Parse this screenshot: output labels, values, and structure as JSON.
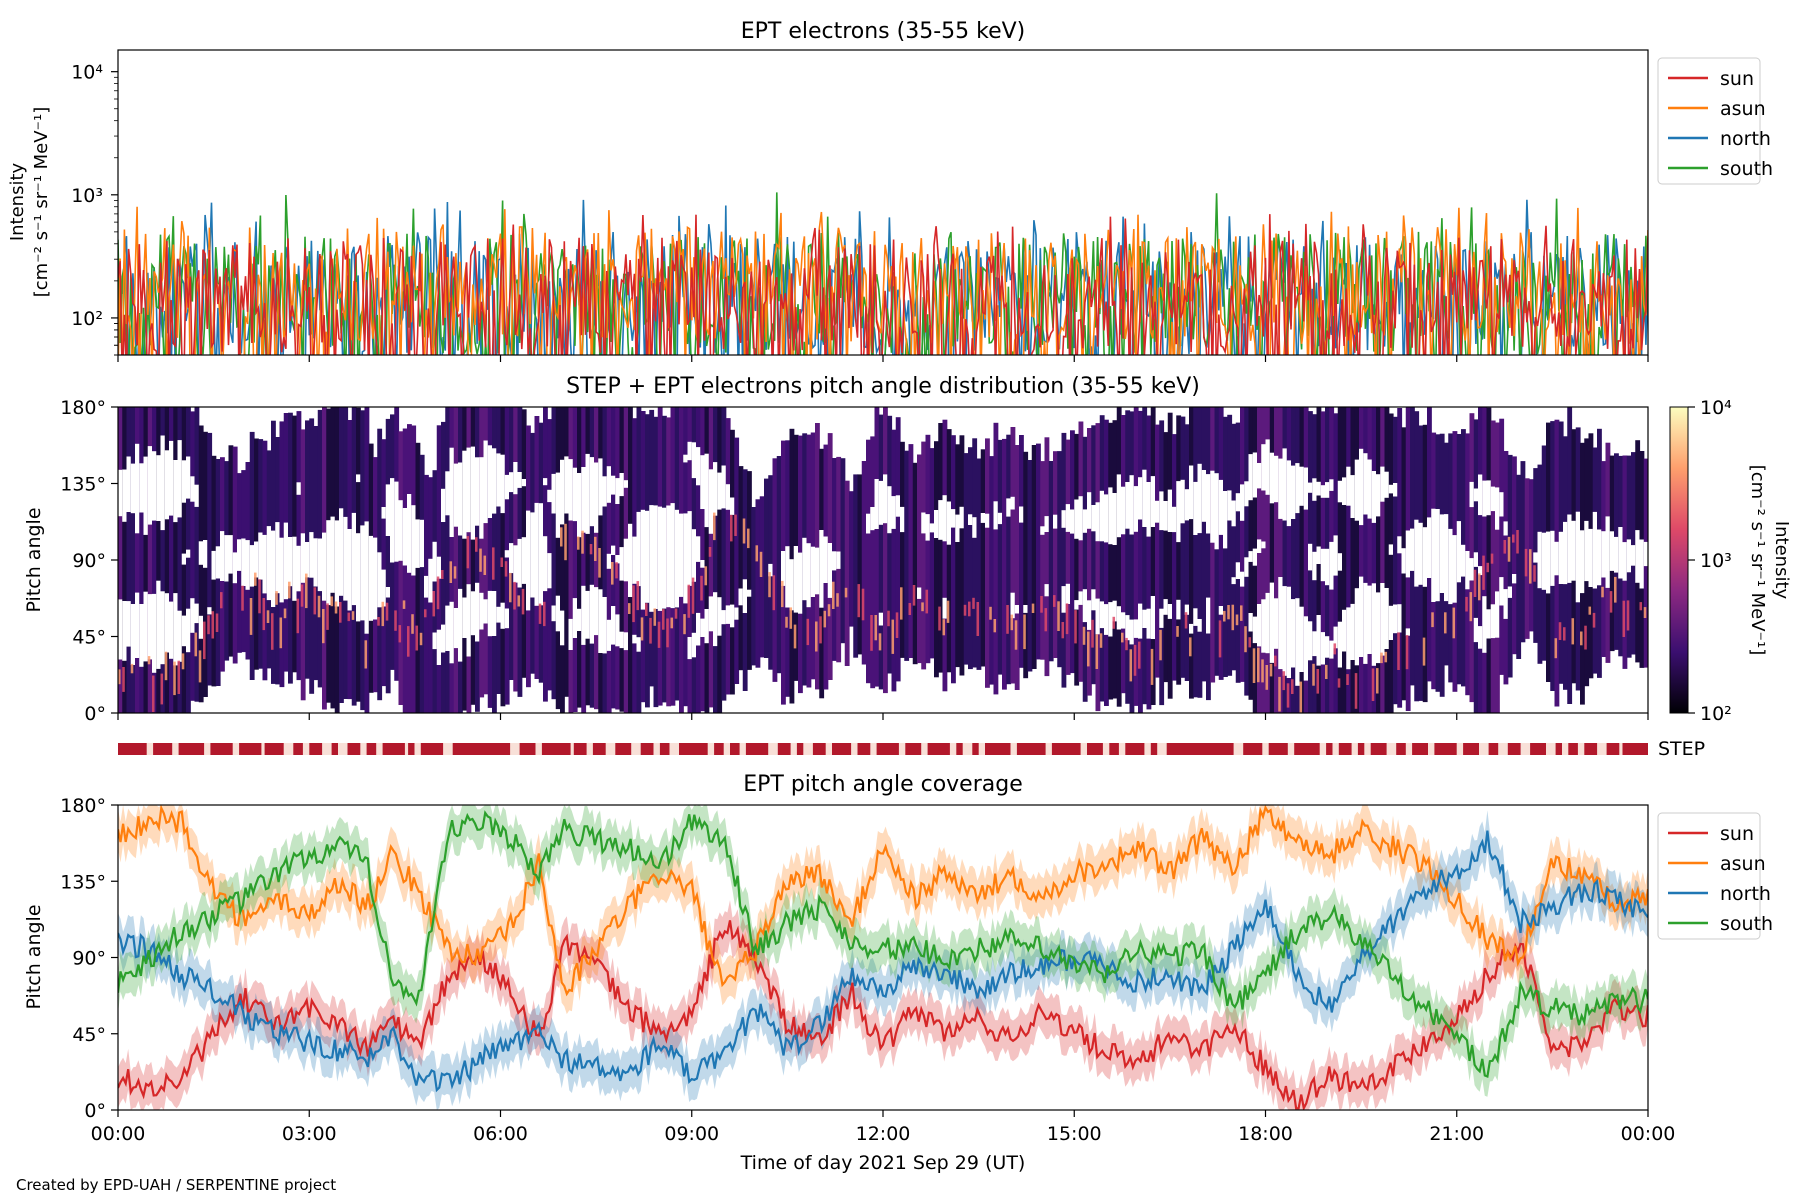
{
  "figure": {
    "credit": "Created by EPD-UAH / SERPENTINE project",
    "xlabel": "Time of day 2021 Sep 29 (UT)",
    "time_ticks": [
      "00:00",
      "03:00",
      "06:00",
      "09:00",
      "12:00",
      "15:00",
      "18:00",
      "21:00",
      "00:00"
    ],
    "series_colors": {
      "sun": "#d62728",
      "asun": "#ff7f0e",
      "north": "#1f77b4",
      "south": "#2ca02c"
    }
  },
  "chart_data": [
    {
      "type": "line",
      "title": "EPT electrons (35-55 keV)",
      "ylabel_line1": "Intensity",
      "ylabel_line2": "[cm⁻² s⁻¹ sr⁻¹ MeV⁻¹]",
      "yscale": "log",
      "ylim": [
        50,
        15000
      ],
      "yticks": [
        {
          "value": 100,
          "label": "10²"
        },
        {
          "value": 1000,
          "label": "10³"
        },
        {
          "value": 10000,
          "label": "10⁴"
        }
      ],
      "xlim_hours": [
        0,
        24
      ],
      "legend_placement": "outside-right",
      "series": [
        {
          "name": "sun",
          "color": "#d62728",
          "typical_range": [
            50,
            450
          ],
          "peak": 700
        },
        {
          "name": "asun",
          "color": "#ff7f0e",
          "typical_range": [
            60,
            550
          ],
          "peak": 800
        },
        {
          "name": "north",
          "color": "#1f77b4",
          "typical_range": [
            50,
            500
          ],
          "peak": 950
        },
        {
          "name": "south",
          "color": "#2ca02c",
          "typical_range": [
            50,
            500
          ],
          "peak": 1050
        }
      ]
    },
    {
      "type": "heatmap",
      "title": "STEP + EPT electrons pitch angle distribution (35-55 keV)",
      "ylabel": "Pitch angle",
      "ylim_deg": [
        0,
        180
      ],
      "yticks": [
        "0°",
        "45°",
        "90°",
        "135°",
        "180°"
      ],
      "colorbar": {
        "scale": "log",
        "range": [
          100,
          10000
        ],
        "ticks": [
          "10²",
          "10³",
          "10⁴"
        ],
        "label": "Intensity",
        "units": "[cm⁻² s⁻¹ sr⁻¹ MeV⁻¹]",
        "colormap": [
          "#000004",
          "#3b0f70",
          "#8c2981",
          "#de4968",
          "#fe9f6d",
          "#fcfdbf"
        ]
      },
      "step_label": "STEP",
      "step_coverage_hours": [
        [
          0,
          0.45
        ],
        [
          0.55,
          0.85
        ],
        [
          0.95,
          1.35
        ],
        [
          1.45,
          1.8
        ],
        [
          1.9,
          2.25
        ],
        [
          2.3,
          2.6
        ],
        [
          2.75,
          2.9
        ],
        [
          3.0,
          3.2
        ],
        [
          3.35,
          3.45
        ],
        [
          3.6,
          3.8
        ],
        [
          3.9,
          4.05
        ],
        [
          4.15,
          4.5
        ],
        [
          4.55,
          4.65
        ],
        [
          4.75,
          5.1
        ],
        [
          5.25,
          6.15
        ],
        [
          6.3,
          6.55
        ],
        [
          6.65,
          7.1
        ],
        [
          7.15,
          7.35
        ],
        [
          7.45,
          7.65
        ],
        [
          7.8,
          8.05
        ],
        [
          8.2,
          8.4
        ],
        [
          8.5,
          8.65
        ],
        [
          8.8,
          9.25
        ],
        [
          9.35,
          9.5
        ],
        [
          9.6,
          9.75
        ],
        [
          9.85,
          10.2
        ],
        [
          10.35,
          10.55
        ],
        [
          10.65,
          10.75
        ],
        [
          10.9,
          11.1
        ],
        [
          11.2,
          11.5
        ],
        [
          11.6,
          11.8
        ],
        [
          11.9,
          12.25
        ],
        [
          12.35,
          12.6
        ],
        [
          12.7,
          13.05
        ],
        [
          13.15,
          13.25
        ],
        [
          13.4,
          13.5
        ],
        [
          13.6,
          14.0
        ],
        [
          14.1,
          14.55
        ],
        [
          14.65,
          15.1
        ],
        [
          15.2,
          15.45
        ],
        [
          15.55,
          15.7
        ],
        [
          15.8,
          16.1
        ],
        [
          16.2,
          16.3
        ],
        [
          16.45,
          17.5
        ],
        [
          17.65,
          17.95
        ],
        [
          18.05,
          18.35
        ],
        [
          18.45,
          18.85
        ],
        [
          18.95,
          19.05
        ],
        [
          19.15,
          19.35
        ],
        [
          19.45,
          19.55
        ],
        [
          19.65,
          19.9
        ],
        [
          20.05,
          20.2
        ],
        [
          20.3,
          20.55
        ],
        [
          20.65,
          21.0
        ],
        [
          21.1,
          21.35
        ],
        [
          21.5,
          21.65
        ],
        [
          21.8,
          22.0
        ],
        [
          22.15,
          22.4
        ],
        [
          22.55,
          22.65
        ],
        [
          22.75,
          22.9
        ],
        [
          23.0,
          23.2
        ],
        [
          23.35,
          23.55
        ],
        [
          23.6,
          24.0
        ]
      ]
    },
    {
      "type": "line",
      "title": "EPT pitch angle coverage",
      "ylabel": "Pitch angle",
      "ylim_deg": [
        0,
        180
      ],
      "yticks": [
        "0°",
        "45°",
        "90°",
        "135°",
        "180°"
      ],
      "xlim_hours": [
        0,
        24
      ],
      "legend_placement": "outside-right",
      "series": [
        {
          "name": "sun",
          "color": "#d62728",
          "x": [
            0,
            0.5,
            1,
            1.5,
            2,
            2.5,
            3,
            3.5,
            3.9,
            4.3,
            4.7,
            5.2,
            5.7,
            6.2,
            6.6,
            7.0,
            7.5,
            8.0,
            8.5,
            9.0,
            9.5,
            10.0,
            10.5,
            11.0,
            11.5,
            12.0,
            12.5,
            13.0,
            13.5,
            14.0,
            14.5,
            15.0,
            15.5,
            16.0,
            16.5,
            17.0,
            17.5,
            18.0,
            18.5,
            19.0,
            19.5,
            20.0,
            20.5,
            21.0,
            21.5,
            22.0,
            22.5,
            23.0,
            23.5,
            24.0
          ],
          "y": [
            20,
            12,
            18,
            45,
            65,
            50,
            60,
            50,
            35,
            55,
            35,
            80,
            90,
            70,
            40,
            100,
            85,
            60,
            45,
            55,
            110,
            90,
            50,
            40,
            70,
            35,
            60,
            45,
            55,
            40,
            60,
            45,
            35,
            25,
            45,
            35,
            50,
            25,
            5,
            20,
            15,
            25,
            40,
            55,
            80,
            100,
            35,
            40,
            60,
            55
          ]
        },
        {
          "name": "asun",
          "color": "#ff7f0e",
          "x": [
            0,
            0.5,
            1,
            1.5,
            2,
            2.5,
            3,
            3.5,
            3.9,
            4.3,
            4.7,
            5.2,
            5.7,
            6.2,
            6.6,
            7.0,
            7.5,
            8.0,
            8.5,
            9.0,
            9.5,
            10.0,
            10.5,
            11.0,
            11.5,
            12.0,
            12.5,
            13.0,
            13.5,
            14.0,
            14.5,
            15.0,
            15.5,
            16.0,
            16.5,
            17.0,
            17.5,
            18.0,
            18.5,
            19.0,
            19.5,
            20.0,
            20.5,
            21.0,
            21.5,
            22.0,
            22.5,
            23.0,
            23.5,
            24.0
          ],
          "y": [
            160,
            172,
            170,
            130,
            110,
            125,
            115,
            135,
            120,
            150,
            130,
            95,
            90,
            110,
            145,
            70,
            95,
            120,
            140,
            130,
            70,
            95,
            135,
            140,
            110,
            155,
            125,
            140,
            125,
            140,
            125,
            140,
            145,
            155,
            140,
            160,
            145,
            175,
            160,
            150,
            165,
            155,
            145,
            125,
            100,
            90,
            145,
            140,
            120,
            125
          ]
        },
        {
          "name": "north",
          "color": "#1f77b4",
          "x": [
            0,
            0.5,
            1,
            1.5,
            2,
            2.5,
            3,
            3.5,
            3.9,
            4.3,
            4.7,
            5.2,
            5.7,
            6.2,
            6.6,
            7.0,
            7.5,
            8.0,
            8.5,
            9.0,
            9.5,
            10.0,
            10.5,
            11.0,
            11.5,
            12.0,
            12.5,
            13.0,
            13.5,
            14.0,
            14.5,
            15.0,
            15.5,
            16.0,
            16.5,
            17.0,
            17.5,
            18.0,
            18.5,
            19.0,
            19.5,
            20.0,
            20.5,
            21.0,
            21.5,
            22.0,
            22.5,
            23.0,
            23.5,
            24.0
          ],
          "y": [
            100,
            95,
            80,
            70,
            55,
            45,
            40,
            35,
            30,
            45,
            20,
            15,
            30,
            40,
            45,
            30,
            25,
            20,
            40,
            20,
            30,
            60,
            35,
            50,
            80,
            70,
            85,
            80,
            70,
            80,
            85,
            90,
            85,
            75,
            80,
            70,
            95,
            120,
            80,
            60,
            90,
            110,
            130,
            140,
            160,
            110,
            120,
            130,
            125,
            115
          ]
        },
        {
          "name": "south",
          "color": "#2ca02c",
          "x": [
            0,
            0.5,
            1,
            1.5,
            2,
            2.5,
            3,
            3.5,
            3.9,
            4.3,
            4.7,
            5.2,
            5.7,
            6.2,
            6.6,
            7.0,
            7.5,
            8.0,
            8.5,
            9.0,
            9.5,
            10.0,
            10.5,
            11.0,
            11.5,
            12.0,
            12.5,
            13.0,
            13.5,
            14.0,
            14.5,
            15.0,
            15.5,
            16.0,
            16.5,
            17.0,
            17.5,
            18.0,
            18.5,
            19.0,
            19.5,
            20.0,
            20.5,
            21.0,
            21.5,
            22.0,
            22.5,
            23.0,
            23.5,
            24.0
          ],
          "y": [
            75,
            90,
            105,
            115,
            125,
            140,
            150,
            155,
            145,
            80,
            60,
            165,
            170,
            160,
            140,
            165,
            160,
            155,
            145,
            170,
            160,
            95,
            110,
            120,
            100,
            95,
            95,
            90,
            95,
            100,
            95,
            85,
            80,
            95,
            90,
            95,
            60,
            80,
            105,
            115,
            100,
            80,
            60,
            45,
            20,
            70,
            60,
            55,
            65,
            65
          ]
        }
      ]
    }
  ]
}
